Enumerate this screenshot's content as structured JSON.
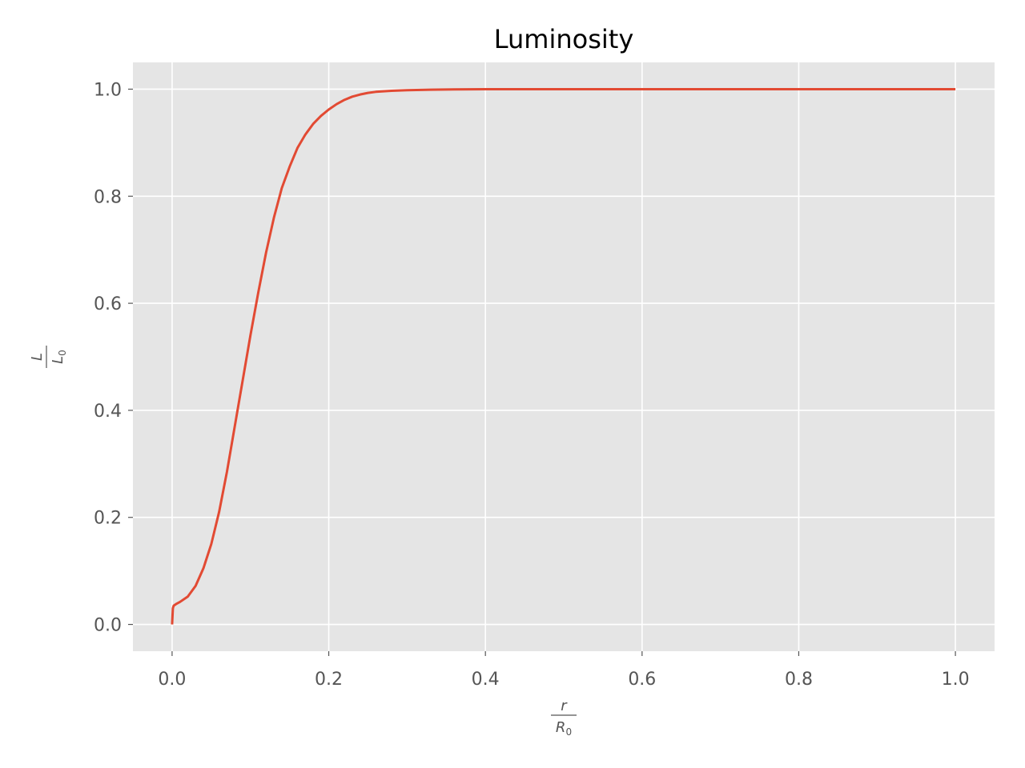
{
  "chart_data": {
    "type": "line",
    "title": "Luminosity",
    "xlabel": {
      "numerator": "r",
      "denominator": "R",
      "denominator_subscript": "0"
    },
    "ylabel": {
      "numerator": "L",
      "denominator": "L",
      "denominator_subscript": "0"
    },
    "xlim": [
      -0.05,
      1.05
    ],
    "ylim": [
      -0.05,
      1.05
    ],
    "xticks": [
      0.0,
      0.2,
      0.4,
      0.6,
      0.8,
      1.0
    ],
    "xtick_labels": [
      "0.0",
      "0.2",
      "0.4",
      "0.6",
      "0.8",
      "1.0"
    ],
    "yticks": [
      0.0,
      0.2,
      0.4,
      0.6,
      0.8,
      1.0
    ],
    "ytick_labels": [
      "0.0",
      "0.2",
      "0.4",
      "0.6",
      "0.8",
      "1.0"
    ],
    "grid": true,
    "legend": "none",
    "colors": {
      "plot_background": "#e5e5e5",
      "grid": "#ffffff",
      "series": "#e24a33"
    },
    "series": [
      {
        "x": [
          0.0,
          0.001,
          0.002,
          0.005,
          0.01,
          0.02,
          0.03,
          0.04,
          0.05,
          0.06,
          0.07,
          0.08,
          0.09,
          0.1,
          0.11,
          0.12,
          0.13,
          0.14,
          0.15,
          0.16,
          0.17,
          0.18,
          0.19,
          0.2,
          0.21,
          0.22,
          0.23,
          0.24,
          0.25,
          0.26,
          0.28,
          0.3,
          0.33,
          0.36,
          0.4,
          0.5,
          0.6,
          0.7,
          0.8,
          0.9,
          1.0
        ],
        "y": [
          0.0,
          0.03,
          0.035,
          0.038,
          0.042,
          0.052,
          0.072,
          0.105,
          0.15,
          0.21,
          0.285,
          0.37,
          0.455,
          0.54,
          0.62,
          0.695,
          0.76,
          0.815,
          0.855,
          0.89,
          0.915,
          0.935,
          0.95,
          0.962,
          0.972,
          0.98,
          0.986,
          0.99,
          0.993,
          0.995,
          0.997,
          0.998,
          0.999,
          0.9995,
          1.0,
          1.0,
          1.0,
          1.0,
          1.0,
          1.0,
          1.0
        ]
      }
    ]
  }
}
